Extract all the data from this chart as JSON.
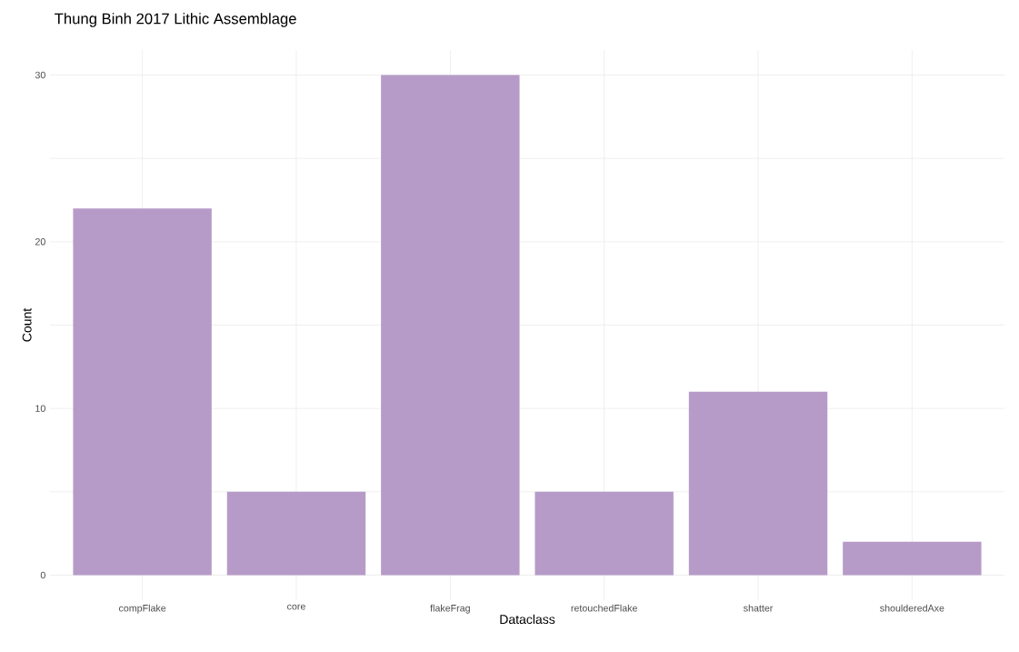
{
  "chart_data": {
    "type": "bar",
    "title": "Thung Binh 2017 Lithic Assemblage",
    "xlabel": "Dataclass",
    "ylabel": "Count",
    "categories": [
      "compFlake",
      "core",
      "flakeFrag",
      "retouchedFlake",
      "shatter",
      "shoulderedAxe"
    ],
    "values": [
      22,
      5,
      30,
      5,
      11,
      2
    ],
    "color": "#b69bc8",
    "ylim": [
      -1.5,
      31.5
    ],
    "yticks": [
      0,
      {
        "value": 5,
        "label": null
      },
      10,
      {
        "value": 15,
        "label": null
      },
      20,
      {
        "value": 25,
        "label": null
      },
      30
    ],
    "grid": true
  }
}
